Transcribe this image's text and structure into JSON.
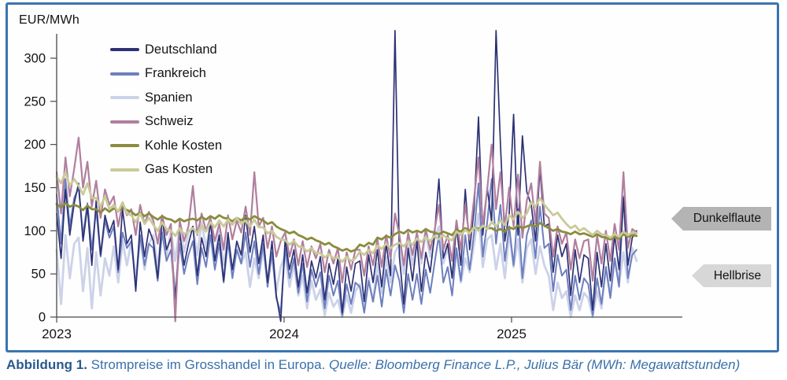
{
  "axis_title": "EUR/MWh",
  "caption": {
    "figure_label": "Abbildung 1.",
    "text": " Strompreise im Grosshandel in Europa. ",
    "source": "Quelle: Bloomberg Finance L.P., Julius Bär (MWh: Megawattstunden)"
  },
  "panel": {
    "border_color": "#3a74b0",
    "background": "#fefefe"
  },
  "chart_data": {
    "type": "line",
    "title": "",
    "xlabel": "",
    "ylabel": "EUR/MWh",
    "ylim": [
      0,
      330
    ],
    "xlim": [
      2023.0,
      2025.75
    ],
    "yticks": [
      0,
      50,
      100,
      150,
      200,
      250,
      300
    ],
    "xticks": [
      2023,
      2024,
      2025
    ],
    "xtick_labels": [
      "2023",
      "2024",
      "2025"
    ],
    "grid": false,
    "legend_position": "top-left-inside",
    "x_start": 2023.0,
    "x_end": 2025.55,
    "sampling": "weekly estimates read from plot; daily noise approximated",
    "annotations": [
      {
        "label": "Dunkelflaute",
        "fill": "#b4b4b4",
        "shape": "left-arrow-tag",
        "y_at": 120
      },
      {
        "label": "Hellbrise",
        "fill": "#d7d7d7",
        "shape": "left-arrow-tag",
        "y_at": 52
      }
    ],
    "series": [
      {
        "name": "Deutschland",
        "color": "#2d3174",
        "stroke_width": 1.7,
        "values": [
          120,
          68,
          148,
          95,
          132,
          155,
          88,
          128,
          60,
          135,
          72,
          118,
          98,
          112,
          55,
          125,
          85,
          95,
          30,
          110,
          70,
          102,
          88,
          45,
          115,
          78,
          92,
          22,
          98,
          60,
          85,
          105,
          48,
          92,
          70,
          110,
          65,
          95,
          42,
          98,
          55,
          88,
          72,
          118,
          75,
          105,
          62,
          95,
          40,
          88,
          25,
          -5,
          90,
          55,
          78,
          35,
          72,
          28,
          65,
          45,
          70,
          20,
          62,
          38,
          68,
          5,
          58,
          30,
          62,
          65,
          18,
          72,
          40,
          78,
          35,
          85,
          48,
          332,
          70,
          15,
          80,
          42,
          88,
          30,
          75,
          52,
          95,
          160,
          68,
          85,
          45,
          105,
          60,
          148,
          78,
          125,
          232,
          95,
          150,
          110,
          332,
          200,
          88,
          120,
          235,
          95,
          210,
          145,
          130,
          88,
          172,
          105,
          108,
          52,
          95,
          70,
          85,
          25,
          78,
          40,
          72,
          68,
          8,
          75,
          35,
          85,
          42,
          95,
          55,
          138,
          60,
          92,
          100
        ]
      },
      {
        "name": "Frankreich",
        "color": "#6d7fbe",
        "stroke_width": 2.0,
        "values": [
          142,
          85,
          160,
          105,
          138,
          150,
          95,
          132,
          78,
          125,
          70,
          112,
          92,
          105,
          52,
          98,
          80,
          88,
          35,
          95,
          60,
          85,
          80,
          42,
          98,
          65,
          78,
          20,
          85,
          50,
          72,
          88,
          38,
          80,
          58,
          95,
          55,
          85,
          40,
          88,
          45,
          78,
          62,
          98,
          58,
          88,
          50,
          85,
          35,
          75,
          22,
          5,
          80,
          45,
          68,
          28,
          62,
          18,
          55,
          35,
          52,
          10,
          48,
          25,
          42,
          2,
          38,
          15,
          40,
          35,
          5,
          42,
          18,
          48,
          12,
          55,
          25,
          60,
          42,
          5,
          50,
          20,
          50,
          15,
          55,
          28,
          62,
          95,
          40,
          58,
          25,
          80,
          42,
          95,
          55,
          98,
          155,
          70,
          110,
          160,
          85,
          130,
          65,
          105,
          60,
          125,
          45,
          95,
          112,
          68,
          128,
          80,
          85,
          30,
          72,
          48,
          55,
          8,
          48,
          20,
          45,
          38,
          2,
          45,
          15,
          58,
          22,
          68,
          35,
          140,
          45,
          72,
          78
        ]
      },
      {
        "name": "Spanien",
        "color": "#ccd2e8",
        "stroke_width": 2.8,
        "values": [
          78,
          15,
          95,
          45,
          85,
          92,
          30,
          80,
          10,
          75,
          25,
          68,
          48,
          82,
          40,
          88,
          60,
          88,
          45,
          92,
          55,
          85,
          95,
          58,
          102,
          70,
          100,
          65,
          105,
          75,
          98,
          105,
          72,
          110,
          80,
          108,
          70,
          100,
          60,
          92,
          50,
          85,
          62,
          75,
          35,
          68,
          45,
          80,
          42,
          72,
          30,
          58,
          72,
          35,
          62,
          25,
          48,
          10,
          42,
          20,
          32,
          2,
          28,
          12,
          20,
          0,
          25,
          5,
          30,
          38,
          8,
          45,
          18,
          62,
          28,
          70,
          40,
          75,
          85,
          50,
          92,
          60,
          95,
          62,
          98,
          70,
          90,
          105,
          62,
          80,
          48,
          75,
          40,
          68,
          52,
          85,
          120,
          58,
          90,
          95,
          55,
          85,
          45,
          98,
          58,
          90,
          40,
          80,
          90,
          50,
          82,
          60,
          48,
          8,
          40,
          22,
          30,
          0,
          25,
          8,
          28,
          22,
          0,
          30,
          10,
          58,
          25,
          68,
          38,
          75,
          40,
          80,
          65
        ]
      },
      {
        "name": "Schweiz",
        "color": "#b17e9e",
        "stroke_width": 2.2,
        "values": [
          168,
          120,
          185,
          140,
          172,
          208,
          150,
          180,
          128,
          158,
          115,
          148,
          130,
          140,
          105,
          132,
          118,
          125,
          95,
          130,
          108,
          122,
          112,
          85,
          118,
          95,
          108,
          -5,
          112,
          88,
          105,
          152,
          95,
          120,
          100,
          115,
          88,
          108,
          78,
          118,
          90,
          112,
          98,
          128,
          95,
          168,
          105,
          115,
          80,
          105,
          70,
          88,
          98,
          70,
          90,
          60,
          88,
          58,
          82,
          68,
          85,
          52,
          78,
          62,
          80,
          40,
          75,
          55,
          78,
          78,
          48,
          82,
          60,
          90,
          58,
          95,
          68,
          120,
          95,
          60,
          98,
          72,
          98,
          68,
          102,
          78,
          100,
          130,
          78,
          95,
          65,
          112,
          78,
          130,
          90,
          138,
          185,
          105,
          148,
          200,
          125,
          168,
          105,
          150,
          105,
          165,
          92,
          135,
          155,
          108,
          180,
          120,
          115,
          70,
          105,
          85,
          98,
          55,
          90,
          68,
          88,
          90,
          42,
          95,
          62,
          100,
          65,
          108,
          78,
          168,
          80,
          102,
          98
        ]
      },
      {
        "name": "Kohle Kosten",
        "color": "#8a8c3e",
        "stroke_width": 2.8,
        "values": [
          131,
          127,
          132,
          128,
          130,
          128,
          124,
          129,
          125,
          125,
          121,
          126,
          122,
          126,
          123,
          127,
          124,
          122,
          118,
          121,
          117,
          120,
          116,
          113,
          117,
          114,
          113,
          110,
          114,
          111,
          113,
          114,
          112,
          116,
          113,
          117,
          114,
          118,
          115,
          114,
          111,
          115,
          112,
          116,
          113,
          117,
          114,
          112,
          108,
          110,
          105,
          102,
          100,
          97,
          99,
          95,
          93,
          90,
          92,
          89,
          87,
          84,
          86,
          82,
          80,
          77,
          79,
          76,
          78,
          84,
          82,
          86,
          84,
          92,
          90,
          94,
          92,
          96,
          99,
          97,
          101,
          98,
          100,
          98,
          102,
          99,
          98,
          96,
          99,
          97,
          95,
          101,
          99,
          103,
          100,
          104,
          102,
          105,
          103,
          103,
          100,
          102,
          99,
          104,
          102,
          106,
          103,
          105,
          107,
          105,
          109,
          106,
          103,
          100,
          102,
          99,
          98,
          96,
          99,
          96,
          97,
          95,
          93,
          96,
          93,
          92,
          90,
          93,
          91,
          96,
          93,
          95,
          94
        ]
      },
      {
        "name": "Gas Kosten",
        "color": "#c9ca99",
        "stroke_width": 2.8,
        "values": [
          163,
          155,
          168,
          152,
          160,
          152,
          142,
          155,
          138,
          138,
          128,
          140,
          125,
          130,
          122,
          133,
          120,
          118,
          110,
          120,
          108,
          115,
          107,
          100,
          110,
          102,
          100,
          94,
          103,
          96,
          99,
          103,
          97,
          106,
          99,
          110,
          104,
          112,
          105,
          113,
          107,
          115,
          108,
          112,
          105,
          113,
          104,
          104,
          97,
          100,
          93,
          90,
          89,
          84,
          88,
          82,
          81,
          76,
          80,
          74,
          74,
          69,
          73,
          68,
          69,
          64,
          70,
          65,
          68,
          76,
          72,
          78,
          74,
          83,
          79,
          85,
          80,
          84,
          86,
          82,
          88,
          84,
          91,
          87,
          93,
          88,
          94,
          90,
          95,
          91,
          89,
          99,
          95,
          101,
          97,
          104,
          100,
          106,
          102,
          110,
          105,
          112,
          107,
          118,
          113,
          122,
          115,
          120,
          133,
          128,
          138,
          130,
          124,
          118,
          121,
          114,
          108,
          103,
          106,
          100,
          103,
          99,
          95,
          100,
          96,
          95,
          92,
          96,
          93,
          99,
          95,
          98,
          97
        ]
      }
    ]
  }
}
